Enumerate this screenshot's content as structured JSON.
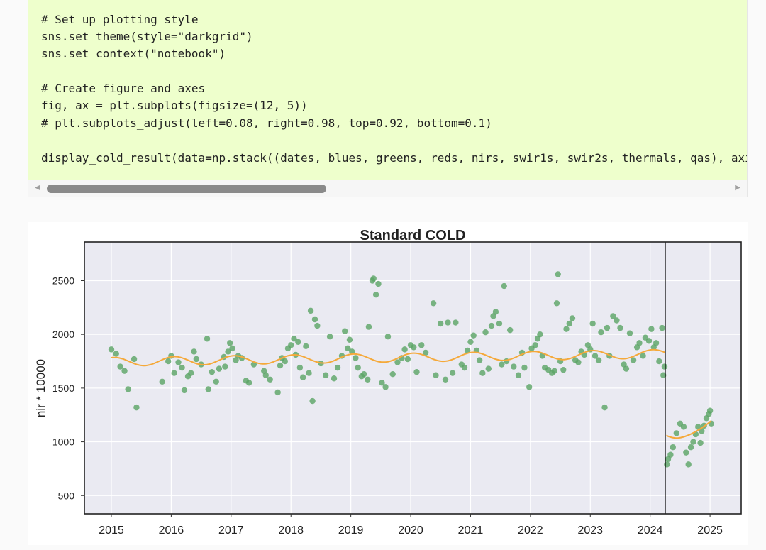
{
  "code": {
    "lines": [
      "# Set up plotting style",
      "sns.set_theme(style=\"darkgrid\")",
      "sns.set_context(\"notebook\")",
      "",
      "# Create figure and axes",
      "fig, ax = plt.subplots(figsize=(12, 5))",
      "# plt.subplots_adjust(left=0.08, right=0.98, top=0.92, bottom=0.1)",
      "",
      "display_cold_result(data=np.stack((dates, blues, greens, reds, nirs, swir1s, swir2s, thermals, qas), axi"
    ],
    "background": "#eeffcc"
  },
  "scrollbar": {
    "left_arrow_icon": "◀",
    "right_arrow_icon": "▶",
    "thumb_fraction": 0.39
  },
  "chart_data": {
    "type": "scatter",
    "title": "Standard COLD",
    "xlabel": "",
    "ylabel": "nir * 10000",
    "x_ticks": [
      "2015",
      "2016",
      "2017",
      "2018",
      "2019",
      "2020",
      "2021",
      "2022",
      "2023",
      "2024",
      "2025"
    ],
    "y_ticks": [
      "500",
      "1000",
      "1500",
      "2000",
      "2500"
    ],
    "ylim": [
      330,
      2860
    ],
    "xlim": [
      2014.55,
      2025.52
    ],
    "grid": true,
    "break_date": 2024.25,
    "colors": {
      "points": "#5aa464",
      "fit_line": "#f5a93a",
      "plot_bg": "#eaeaf2",
      "break_line": "#000000"
    },
    "series": [
      {
        "values": [
          [
            2015.0,
            1860
          ],
          [
            2015.08,
            1820
          ],
          [
            2015.15,
            1700
          ],
          [
            2015.22,
            1660
          ],
          [
            2015.28,
            1490
          ],
          [
            2015.38,
            1770
          ],
          [
            2015.42,
            1320
          ],
          [
            2015.85,
            1560
          ],
          [
            2015.95,
            1750
          ],
          [
            2016.0,
            1800
          ],
          [
            2016.05,
            1640
          ],
          [
            2016.12,
            1740
          ],
          [
            2016.18,
            1690
          ],
          [
            2016.22,
            1480
          ],
          [
            2016.28,
            1610
          ],
          [
            2016.33,
            1640
          ],
          [
            2016.38,
            1840
          ],
          [
            2016.42,
            1770
          ],
          [
            2016.5,
            1720
          ],
          [
            2016.6,
            1960
          ],
          [
            2016.62,
            1490
          ],
          [
            2016.68,
            1650
          ],
          [
            2016.75,
            1560
          ],
          [
            2016.8,
            1680
          ],
          [
            2016.88,
            1790
          ],
          [
            2016.9,
            1700
          ],
          [
            2016.95,
            1840
          ],
          [
            2016.98,
            1920
          ],
          [
            2017.02,
            1870
          ],
          [
            2017.08,
            1760
          ],
          [
            2017.12,
            1800
          ],
          [
            2017.18,
            1780
          ],
          [
            2017.25,
            1570
          ],
          [
            2017.3,
            1550
          ],
          [
            2017.38,
            1720
          ],
          [
            2017.55,
            1660
          ],
          [
            2017.58,
            1620
          ],
          [
            2017.65,
            1580
          ],
          [
            2017.78,
            1460
          ],
          [
            2017.82,
            1710
          ],
          [
            2017.85,
            1780
          ],
          [
            2017.9,
            1750
          ],
          [
            2017.95,
            1870
          ],
          [
            2018.0,
            1900
          ],
          [
            2018.05,
            1960
          ],
          [
            2018.08,
            1810
          ],
          [
            2018.12,
            1930
          ],
          [
            2018.15,
            1690
          ],
          [
            2018.2,
            1600
          ],
          [
            2018.25,
            1890
          ],
          [
            2018.3,
            1640
          ],
          [
            2018.33,
            2220
          ],
          [
            2018.36,
            1380
          ],
          [
            2018.4,
            2140
          ],
          [
            2018.44,
            2080
          ],
          [
            2018.5,
            1730
          ],
          [
            2018.58,
            1620
          ],
          [
            2018.65,
            1980
          ],
          [
            2018.72,
            1590
          ],
          [
            2018.78,
            1690
          ],
          [
            2018.85,
            1800
          ],
          [
            2018.9,
            2030
          ],
          [
            2018.95,
            1870
          ],
          [
            2018.98,
            1950
          ],
          [
            2019.02,
            1840
          ],
          [
            2019.08,
            1780
          ],
          [
            2019.12,
            1690
          ],
          [
            2019.18,
            1610
          ],
          [
            2019.22,
            1630
          ],
          [
            2019.28,
            1580
          ],
          [
            2019.3,
            2070
          ],
          [
            2019.36,
            2500
          ],
          [
            2019.38,
            2520
          ],
          [
            2019.42,
            2370
          ],
          [
            2019.46,
            2470
          ],
          [
            2019.52,
            1550
          ],
          [
            2019.58,
            1510
          ],
          [
            2019.62,
            1980
          ],
          [
            2019.7,
            1630
          ],
          [
            2019.78,
            1740
          ],
          [
            2019.85,
            1780
          ],
          [
            2019.9,
            1860
          ],
          [
            2019.95,
            1770
          ],
          [
            2020.0,
            1900
          ],
          [
            2020.05,
            1880
          ],
          [
            2020.1,
            1650
          ],
          [
            2020.18,
            1900
          ],
          [
            2020.25,
            1830
          ],
          [
            2020.38,
            2290
          ],
          [
            2020.42,
            1620
          ],
          [
            2020.5,
            2100
          ],
          [
            2020.58,
            1580
          ],
          [
            2020.62,
            2110
          ],
          [
            2020.7,
            1640
          ],
          [
            2020.75,
            2110
          ],
          [
            2020.85,
            1720
          ],
          [
            2020.9,
            1690
          ],
          [
            2020.95,
            1850
          ],
          [
            2021.0,
            1930
          ],
          [
            2021.05,
            1990
          ],
          [
            2021.1,
            1850
          ],
          [
            2021.15,
            1760
          ],
          [
            2021.2,
            1640
          ],
          [
            2021.25,
            2020
          ],
          [
            2021.3,
            1680
          ],
          [
            2021.35,
            2080
          ],
          [
            2021.38,
            2170
          ],
          [
            2021.42,
            2210
          ],
          [
            2021.48,
            2100
          ],
          [
            2021.52,
            1720
          ],
          [
            2021.56,
            2450
          ],
          [
            2021.6,
            1750
          ],
          [
            2021.66,
            2040
          ],
          [
            2021.72,
            1700
          ],
          [
            2021.8,
            1620
          ],
          [
            2021.86,
            1830
          ],
          [
            2021.9,
            1690
          ],
          [
            2021.98,
            1510
          ],
          [
            2022.02,
            1870
          ],
          [
            2022.08,
            1900
          ],
          [
            2022.12,
            1960
          ],
          [
            2022.16,
            2000
          ],
          [
            2022.2,
            1800
          ],
          [
            2022.24,
            1690
          ],
          [
            2022.3,
            1670
          ],
          [
            2022.36,
            1640
          ],
          [
            2022.4,
            1660
          ],
          [
            2022.44,
            2290
          ],
          [
            2022.46,
            2560
          ],
          [
            2022.5,
            1750
          ],
          [
            2022.55,
            1670
          ],
          [
            2022.6,
            2050
          ],
          [
            2022.65,
            2100
          ],
          [
            2022.7,
            2150
          ],
          [
            2022.75,
            1760
          ],
          [
            2022.8,
            1740
          ],
          [
            2022.85,
            1840
          ],
          [
            2022.9,
            1810
          ],
          [
            2022.96,
            1900
          ],
          [
            2023.0,
            1860
          ],
          [
            2023.04,
            2100
          ],
          [
            2023.08,
            1800
          ],
          [
            2023.14,
            1760
          ],
          [
            2023.18,
            2020
          ],
          [
            2023.24,
            1320
          ],
          [
            2023.28,
            2060
          ],
          [
            2023.32,
            1800
          ],
          [
            2023.38,
            2170
          ],
          [
            2023.44,
            2130
          ],
          [
            2023.5,
            2060
          ],
          [
            2023.56,
            1720
          ],
          [
            2023.6,
            1680
          ],
          [
            2023.66,
            2010
          ],
          [
            2023.72,
            1760
          ],
          [
            2023.78,
            1880
          ],
          [
            2023.82,
            1920
          ],
          [
            2023.88,
            1800
          ],
          [
            2023.92,
            1970
          ],
          [
            2023.98,
            1940
          ],
          [
            2024.02,
            2050
          ],
          [
            2024.06,
            1880
          ],
          [
            2024.1,
            1920
          ],
          [
            2024.15,
            1750
          ],
          [
            2024.2,
            2060
          ],
          [
            2024.22,
            1620
          ],
          [
            2024.24,
            1700
          ],
          [
            2024.28,
            790
          ],
          [
            2024.3,
            840
          ],
          [
            2024.34,
            880
          ],
          [
            2024.38,
            950
          ],
          [
            2024.44,
            1080
          ],
          [
            2024.5,
            1170
          ],
          [
            2024.56,
            1140
          ],
          [
            2024.6,
            900
          ],
          [
            2024.64,
            790
          ],
          [
            2024.68,
            950
          ],
          [
            2024.72,
            1000
          ],
          [
            2024.76,
            1070
          ],
          [
            2024.8,
            1140
          ],
          [
            2024.84,
            990
          ],
          [
            2024.86,
            1100
          ],
          [
            2024.9,
            1150
          ],
          [
            2024.94,
            1220
          ],
          [
            2024.98,
            1260
          ],
          [
            2025.0,
            1290
          ],
          [
            2025.02,
            1170
          ]
        ]
      }
    ]
  }
}
